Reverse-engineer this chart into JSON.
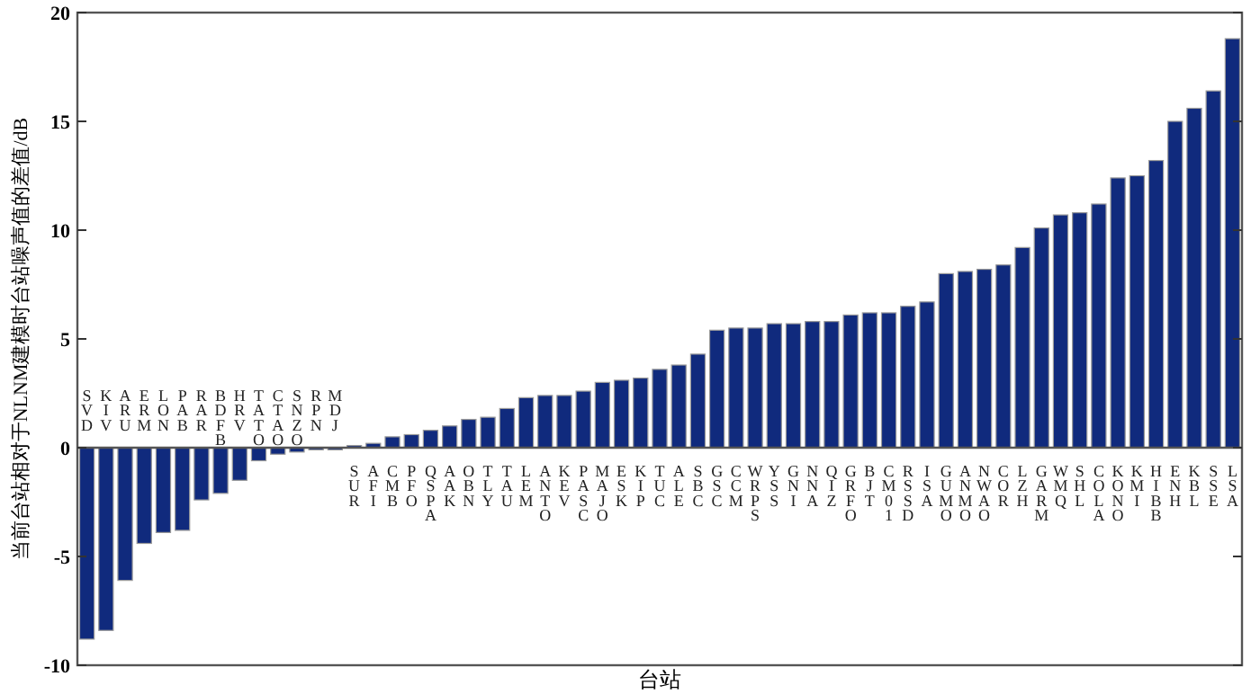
{
  "chart_data": {
    "type": "bar",
    "xlabel": "台站",
    "ylabel": "当前台站相对于NLNM建模时台站噪声值的差值/dB",
    "categories": [
      "SVD",
      "KIV",
      "ARU",
      "ERM",
      "LON",
      "PAB",
      "RAR",
      "BDFB",
      "HRV",
      "TATO",
      "CTAO",
      "SNZO",
      "RPN",
      "MDJ",
      "SUR",
      "AFI",
      "CMB",
      "PFO",
      "QSPA",
      "AAK",
      "OBN",
      "TLY",
      "TAU",
      "LEM",
      "ANTO",
      "KEV",
      "PASC",
      "MAJO",
      "ESK",
      "KIP",
      "TUC",
      "ALE",
      "SBC",
      "GSC",
      "CCM",
      "WRPS",
      "YSS",
      "GNI",
      "NNA",
      "QIZ",
      "GRFO",
      "BJT",
      "CM01",
      "RSSD",
      "ISA",
      "GUMO",
      "ANMO",
      "NWAO",
      "COR",
      "LZH",
      "GARM",
      "WMQ",
      "SHL",
      "COLA",
      "KONO",
      "KMI",
      "HIBB",
      "ENH",
      "KBL",
      "SSE",
      "LSA"
    ],
    "values": [
      -8.8,
      -8.4,
      -6.1,
      -4.4,
      -3.9,
      -3.8,
      -2.4,
      -2.1,
      -1.5,
      -0.6,
      -0.3,
      -0.2,
      -0.1,
      -0.1,
      0.1,
      0.2,
      0.5,
      0.6,
      0.8,
      1.0,
      1.3,
      1.4,
      1.8,
      2.3,
      2.4,
      2.4,
      2.6,
      3.0,
      3.1,
      3.2,
      3.6,
      3.8,
      4.3,
      5.4,
      5.5,
      5.5,
      5.7,
      5.7,
      5.8,
      5.8,
      6.1,
      6.2,
      6.2,
      6.5,
      6.7,
      8.0,
      8.1,
      8.2,
      8.4,
      9.2,
      10.1,
      10.7,
      10.8,
      11.2,
      12.4,
      12.5,
      13.2,
      15.0,
      15.6,
      16.4,
      18.8
    ],
    "color": "#102a7d",
    "ylim": [
      -10,
      20
    ],
    "yticks": [
      -10,
      -5,
      0,
      5,
      10,
      15,
      20
    ],
    "grid": false
  }
}
